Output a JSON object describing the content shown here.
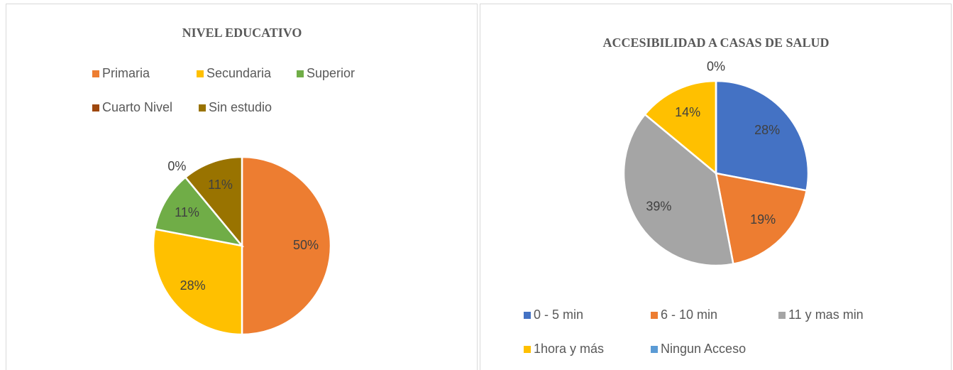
{
  "chart_data": [
    {
      "type": "pie",
      "title": "NIVEL EDUCATIVO",
      "categories": [
        "Primaria",
        "Secundaria",
        "Superior",
        "Cuarto Nivel",
        "Sin estudio"
      ],
      "values": [
        50,
        28,
        11,
        0,
        11
      ],
      "value_labels": [
        "50%",
        "28%",
        "11%",
        "0%",
        "11%"
      ],
      "colors": [
        "#ED7D31",
        "#FFC000",
        "#70AD47",
        "#9E480E",
        "#997300"
      ]
    },
    {
      "type": "pie",
      "title": "ACCESIBILIDAD A CASAS DE SALUD",
      "categories": [
        "0 - 5 min",
        "6 - 10 min",
        "11 y mas min",
        "1hora y más",
        "Ningun Acceso"
      ],
      "values": [
        28,
        19,
        39,
        14,
        0
      ],
      "value_labels": [
        "28%",
        "19%",
        "39%",
        "14%",
        "0%"
      ],
      "colors": [
        "#4472C4",
        "#ED7D31",
        "#A5A5A5",
        "#FFC000",
        "#5B9BD5"
      ]
    }
  ]
}
